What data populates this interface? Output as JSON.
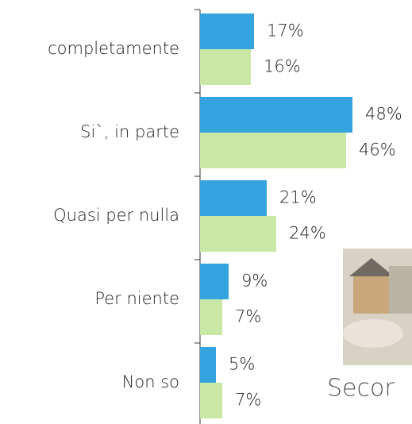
{
  "chart_data": {
    "type": "bar",
    "orientation": "horizontal",
    "categories": [
      "completamente",
      "Si`, in parte",
      "Quasi per nulla",
      "Per niente",
      "Non so"
    ],
    "series": [
      {
        "color": "#35a4de",
        "values": [
          17,
          48,
          21,
          9,
          5
        ],
        "value_labels": [
          "17%",
          "48%",
          "21%",
          "9%",
          "5%"
        ]
      },
      {
        "color": "#c9e8a6",
        "values": [
          16,
          46,
          24,
          7,
          7
        ],
        "value_labels": [
          "16%",
          "46%",
          "24%",
          "7%",
          "7%"
        ]
      }
    ],
    "image_caption": "Secor"
  }
}
